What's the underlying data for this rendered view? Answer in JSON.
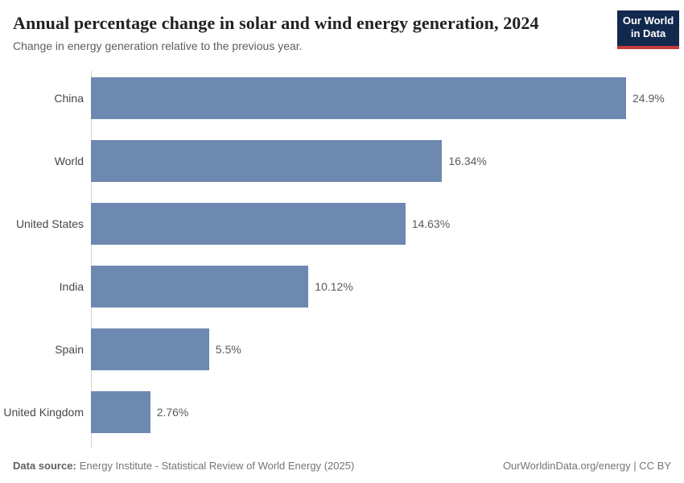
{
  "header": {
    "title": "Annual percentage change in solar and wind energy generation, 2024",
    "subtitle": "Change in energy generation relative to the previous year."
  },
  "logo": {
    "line1": "Our World",
    "line2": "in Data",
    "bg_color": "#12294e",
    "accent_color": "#c53a3a"
  },
  "chart_data": {
    "type": "bar",
    "orientation": "horizontal",
    "title": "Annual percentage change in solar and wind energy generation, 2024",
    "subtitle": "Change in energy generation relative to the previous year.",
    "categories": [
      "China",
      "World",
      "United States",
      "India",
      "Spain",
      "United Kingdom"
    ],
    "values": [
      24.9,
      16.34,
      14.63,
      10.12,
      5.5,
      2.76
    ],
    "value_labels": [
      "24.9%",
      "16.34%",
      "14.63%",
      "10.12%",
      "5.5%",
      "2.76%"
    ],
    "xlabel": "",
    "ylabel": "",
    "xlim": [
      0,
      24.9
    ],
    "unit": "%",
    "grid": false,
    "legend_position": "none",
    "bar_color": "#6d89b0"
  },
  "footer": {
    "source_label": "Data source:",
    "source_text": "Energy Institute - Statistical Review of World Energy (2025)",
    "credit": "OurWorldinData.org/energy | CC BY"
  }
}
